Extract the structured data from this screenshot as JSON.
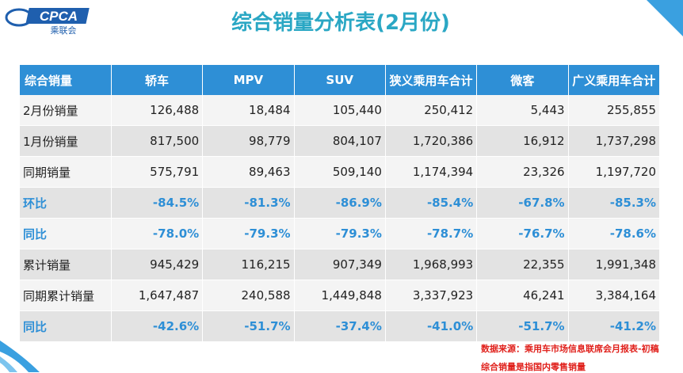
{
  "logo": {
    "brand": "CPCA",
    "name": "乘联会"
  },
  "header": {
    "title": "综合销量分析表(2月份)"
  },
  "table": {
    "columns": [
      "综合销量",
      "轿车",
      "MPV",
      "SUV",
      "狭义乘用车合计",
      "微客",
      "广义乘用车合计"
    ],
    "rows": [
      [
        "2月份销量",
        "126,488",
        "18,484",
        "105,440",
        "250,412",
        "5,443",
        "255,855"
      ],
      [
        "1月份销量",
        "817,500",
        "98,779",
        "804,107",
        "1,720,386",
        "16,912",
        "1,737,298"
      ],
      [
        "同期销量",
        "575,791",
        "89,463",
        "509,140",
        "1,174,394",
        "23,326",
        "1,197,720"
      ],
      [
        "环比",
        "-84.5%",
        "-81.3%",
        "-86.9%",
        "-85.4%",
        "-67.8%",
        "-85.3%"
      ],
      [
        "同比",
        "-78.0%",
        "-79.3%",
        "-79.3%",
        "-78.7%",
        "-76.7%",
        "-78.6%"
      ],
      [
        "累计销量",
        "945,429",
        "116,215",
        "907,349",
        "1,968,993",
        "22,355",
        "1,991,348"
      ],
      [
        "同期累计销量",
        "1,647,487",
        "240,588",
        "1,449,848",
        "3,337,923",
        "46,241",
        "3,384,164"
      ],
      [
        "同比",
        "-42.6%",
        "-51.7%",
        "-37.4%",
        "-41.0%",
        "-51.7%",
        "-41.2%"
      ]
    ]
  },
  "footnotes": [
    "数据来源：乘用车市场信息联席会月报表-初稿",
    "综合销量是指国内零售销量"
  ]
}
